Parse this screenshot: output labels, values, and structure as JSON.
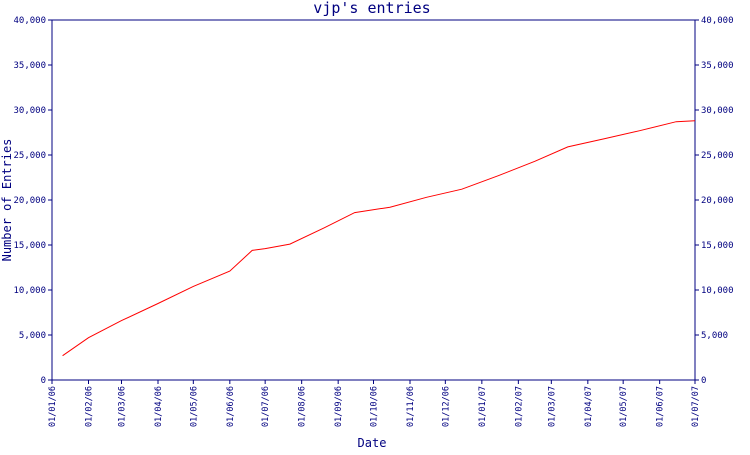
{
  "chart_data": {
    "type": "line",
    "title": "vjp's entries",
    "xlabel": "Date",
    "ylabel": "Number of Entries",
    "ylim": [
      0,
      40000
    ],
    "yticks": [
      "0",
      "5,000",
      "10,000",
      "15,000",
      "20,000",
      "25,000",
      "30,000",
      "35,000",
      "40,000"
    ],
    "yticks_right": [
      "0",
      "5,000",
      "10,000",
      "15,000",
      "20,000",
      "25,000",
      "30,000",
      "35,000",
      "40,000"
    ],
    "xticks": [
      "01/01/06",
      "01/02/06",
      "01/03/06",
      "01/04/06",
      "01/05/06",
      "01/06/06",
      "01/07/06",
      "01/08/06",
      "01/09/06",
      "01/10/06",
      "01/11/06",
      "01/12/06",
      "01/01/07",
      "01/02/07",
      "01/03/07",
      "01/04/07",
      "01/05/07",
      "01/06/07",
      "01/07/07"
    ],
    "grid": false,
    "colors": {
      "line": "#ff0000",
      "axes": "#000080",
      "text": "#000080"
    },
    "series": [
      {
        "x": [
          "2006-01-10",
          "2006-02-01",
          "2006-03-01",
          "2006-04-01",
          "2006-05-01",
          "2006-06-01",
          "2006-06-20",
          "2006-07-01",
          "2006-07-22",
          "2006-08-20",
          "2006-09-15",
          "2006-10-15",
          "2006-11-15",
          "2006-12-15",
          "2007-01-15",
          "2007-02-15",
          "2007-03-15",
          "2007-04-15",
          "2007-05-15",
          "2007-06-15",
          "2007-07-01"
        ],
        "values": [
          2700,
          4700,
          6600,
          8500,
          10400,
          12100,
          14400,
          14600,
          15100,
          16900,
          18600,
          19200,
          20300,
          21200,
          22700,
          24300,
          25900,
          26800,
          27700,
          28700,
          28800
        ]
      }
    ]
  }
}
